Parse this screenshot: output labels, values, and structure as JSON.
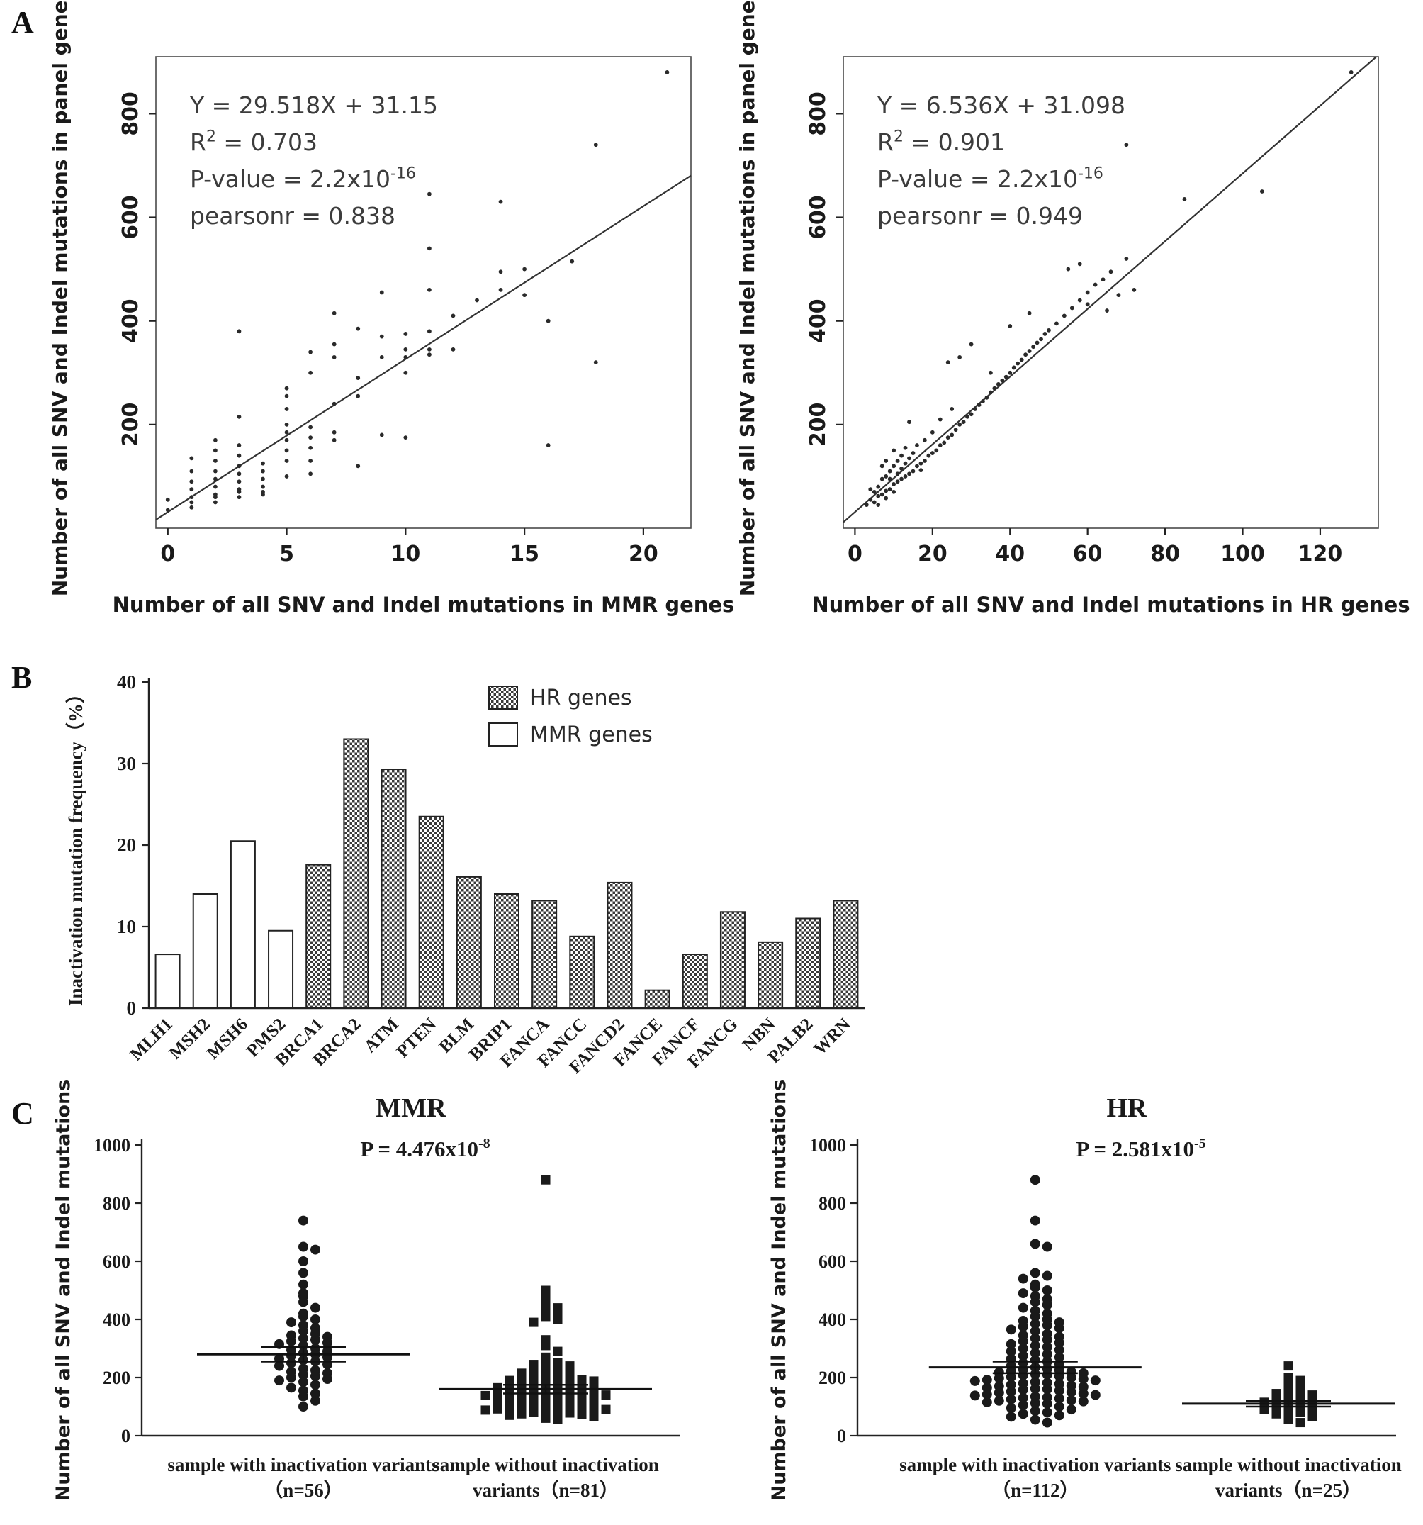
{
  "panel_labels": {
    "a": "A",
    "b": "B",
    "c": "C"
  },
  "chart_data": [
    {
      "id": "scatter-mmr",
      "type": "scatter",
      "xlabel": "Number of all SNV and Indel mutations in MMR genes",
      "ylabel": "Number of all SNV and Indel mutations in panel genes",
      "xlim": [
        -0.5,
        22
      ],
      "ylim": [
        0,
        910
      ],
      "xticks": [
        0,
        5,
        10,
        15,
        20
      ],
      "yticks": [
        200,
        400,
        600,
        800
      ],
      "fit": {
        "slope": 29.518,
        "intercept": 31.15
      },
      "annotation": [
        [
          {
            "t": "Y = 29.518X + 31.15"
          }
        ],
        [
          {
            "t": "R"
          },
          {
            "t": "2",
            "sup": true
          },
          {
            "t": " = 0.703"
          }
        ],
        [
          {
            "t": "P-value = 2.2x10"
          },
          {
            "t": "-16",
            "sup": true
          }
        ],
        [
          {
            "t": "pearsonr = 0.838"
          }
        ]
      ],
      "points": [
        [
          0,
          35
        ],
        [
          0,
          55
        ],
        [
          1,
          40
        ],
        [
          1,
          50
        ],
        [
          1,
          60
        ],
        [
          1,
          75
        ],
        [
          1,
          90
        ],
        [
          1,
          110
        ],
        [
          1,
          135
        ],
        [
          2,
          50
        ],
        [
          2,
          60
        ],
        [
          2,
          65
        ],
        [
          2,
          80
        ],
        [
          2,
          95
        ],
        [
          2,
          110
        ],
        [
          2,
          130
        ],
        [
          2,
          150
        ],
        [
          2,
          170
        ],
        [
          3,
          60
        ],
        [
          3,
          70
        ],
        [
          3,
          75
        ],
        [
          3,
          90
        ],
        [
          3,
          105
        ],
        [
          3,
          120
        ],
        [
          3,
          140
        ],
        [
          3,
          160
        ],
        [
          3,
          215
        ],
        [
          3,
          380
        ],
        [
          4,
          65
        ],
        [
          4,
          70
        ],
        [
          4,
          80
        ],
        [
          4,
          95
        ],
        [
          4,
          110
        ],
        [
          4,
          125
        ],
        [
          5,
          100
        ],
        [
          5,
          130
        ],
        [
          5,
          150
        ],
        [
          5,
          170
        ],
        [
          5,
          185
        ],
        [
          5,
          200
        ],
        [
          5,
          230
        ],
        [
          5,
          255
        ],
        [
          5,
          270
        ],
        [
          6,
          105
        ],
        [
          6,
          130
        ],
        [
          6,
          155
        ],
        [
          6,
          175
        ],
        [
          6,
          195
        ],
        [
          6,
          300
        ],
        [
          6,
          340
        ],
        [
          7,
          170
        ],
        [
          7,
          185
        ],
        [
          7,
          240
        ],
        [
          7,
          330
        ],
        [
          7,
          355
        ],
        [
          7,
          415
        ],
        [
          8,
          120
        ],
        [
          8,
          255
        ],
        [
          8,
          290
        ],
        [
          8,
          385
        ],
        [
          9,
          180
        ],
        [
          9,
          330
        ],
        [
          9,
          370
        ],
        [
          9,
          455
        ],
        [
          10,
          175
        ],
        [
          10,
          300
        ],
        [
          10,
          330
        ],
        [
          10,
          345
        ],
        [
          10,
          375
        ],
        [
          11,
          335
        ],
        [
          11,
          345
        ],
        [
          11,
          380
        ],
        [
          11,
          460
        ],
        [
          11,
          540
        ],
        [
          11,
          645
        ],
        [
          12,
          345
        ],
        [
          12,
          410
        ],
        [
          13,
          440
        ],
        [
          14,
          460
        ],
        [
          14,
          495
        ],
        [
          14,
          630
        ],
        [
          15,
          450
        ],
        [
          15,
          500
        ],
        [
          16,
          160
        ],
        [
          16,
          400
        ],
        [
          17,
          515
        ],
        [
          18,
          320
        ],
        [
          18,
          740
        ],
        [
          21,
          880
        ]
      ]
    },
    {
      "id": "scatter-hr",
      "type": "scatter",
      "xlabel": "Number of all SNV and Indel mutations in HR genes",
      "ylabel": "Number of all SNV and Indel mutations in panel genes",
      "xlim": [
        -3,
        135
      ],
      "ylim": [
        0,
        910
      ],
      "xticks": [
        0,
        20,
        40,
        60,
        80,
        100,
        120
      ],
      "yticks": [
        200,
        400,
        600,
        800
      ],
      "fit": {
        "slope": 6.536,
        "intercept": 31.098
      },
      "annotation": [
        [
          {
            "t": "Y = 6.536X + 31.098"
          }
        ],
        [
          {
            "t": "R"
          },
          {
            "t": "2",
            "sup": true
          },
          {
            "t": " = 0.901"
          }
        ],
        [
          {
            "t": "P-value = 2.2x10"
          },
          {
            "t": "-16",
            "sup": true
          }
        ],
        [
          {
            "t": "pearsonr = 0.949"
          }
        ]
      ],
      "points": [
        [
          3,
          45
        ],
        [
          4,
          55
        ],
        [
          4,
          75
        ],
        [
          5,
          50
        ],
        [
          5,
          70
        ],
        [
          6,
          45
        ],
        [
          6,
          62
        ],
        [
          6,
          80
        ],
        [
          7,
          65
        ],
        [
          7,
          95
        ],
        [
          7,
          120
        ],
        [
          8,
          58
        ],
        [
          8,
          72
        ],
        [
          8,
          100
        ],
        [
          8,
          130
        ],
        [
          9,
          75
        ],
        [
          9,
          95
        ],
        [
          9,
          110
        ],
        [
          10,
          70
        ],
        [
          10,
          85
        ],
        [
          10,
          120
        ],
        [
          10,
          150
        ],
        [
          11,
          90
        ],
        [
          11,
          105
        ],
        [
          11,
          130
        ],
        [
          12,
          95
        ],
        [
          12,
          115
        ],
        [
          12,
          140
        ],
        [
          13,
          100
        ],
        [
          13,
          125
        ],
        [
          13,
          155
        ],
        [
          14,
          105
        ],
        [
          14,
          135
        ],
        [
          14,
          205
        ],
        [
          15,
          110
        ],
        [
          15,
          145
        ],
        [
          16,
          120
        ],
        [
          16,
          160
        ],
        [
          17,
          112
        ],
        [
          17,
          125
        ],
        [
          18,
          130
        ],
        [
          18,
          170
        ],
        [
          19,
          140
        ],
        [
          20,
          145
        ],
        [
          20,
          185
        ],
        [
          21,
          150
        ],
        [
          22,
          160
        ],
        [
          22,
          210
        ],
        [
          23,
          165
        ],
        [
          24,
          175
        ],
        [
          24,
          320
        ],
        [
          25,
          180
        ],
        [
          25,
          230
        ],
        [
          26,
          190
        ],
        [
          27,
          200
        ],
        [
          27,
          330
        ],
        [
          28,
          205
        ],
        [
          29,
          215
        ],
        [
          30,
          220
        ],
        [
          30,
          355
        ],
        [
          31,
          230
        ],
        [
          32,
          238
        ],
        [
          33,
          245
        ],
        [
          34,
          252
        ],
        [
          35,
          262
        ],
        [
          35,
          300
        ],
        [
          36,
          270
        ],
        [
          37,
          278
        ],
        [
          38,
          285
        ],
        [
          39,
          292
        ],
        [
          40,
          300
        ],
        [
          40,
          390
        ],
        [
          41,
          310
        ],
        [
          42,
          318
        ],
        [
          43,
          325
        ],
        [
          44,
          335
        ],
        [
          45,
          342
        ],
        [
          45,
          415
        ],
        [
          46,
          350
        ],
        [
          47,
          358
        ],
        [
          48,
          365
        ],
        [
          49,
          375
        ],
        [
          50,
          382
        ],
        [
          52,
          395
        ],
        [
          54,
          410
        ],
        [
          55,
          500
        ],
        [
          56,
          425
        ],
        [
          58,
          440
        ],
        [
          58,
          510
        ],
        [
          60,
          432
        ],
        [
          60,
          455
        ],
        [
          62,
          470
        ],
        [
          64,
          480
        ],
        [
          65,
          420
        ],
        [
          66,
          495
        ],
        [
          68,
          450
        ],
        [
          70,
          520
        ],
        [
          70,
          740
        ],
        [
          72,
          460
        ],
        [
          85,
          635
        ],
        [
          105,
          650
        ],
        [
          128,
          880
        ]
      ]
    },
    {
      "id": "bar-inactivation",
      "type": "bar",
      "ylabel": "Inactivation mutation frequency（%）",
      "ylim": [
        0,
        40
      ],
      "yticks": [
        0,
        10,
        20,
        30,
        40
      ],
      "legend": [
        {
          "label": "HR genes",
          "style": "hatch"
        },
        {
          "label": "MMR genes",
          "style": "open"
        }
      ],
      "categories": [
        "MLH1",
        "MSH2",
        "MSH6",
        "PMS2",
        "BRCA1",
        "BRCA2",
        "ATM",
        "PTEN",
        "BLM",
        "BRIP1",
        "FANCA",
        "FANCC",
        "FANCD2",
        "FANCE",
        "FANCF",
        "FANCG",
        "NBN",
        "PALB2",
        "WRN"
      ],
      "values": [
        6.6,
        14.0,
        20.5,
        9.5,
        17.6,
        33.0,
        29.3,
        23.5,
        16.1,
        14.0,
        13.2,
        8.8,
        15.4,
        2.2,
        6.6,
        11.8,
        8.1,
        11.0,
        13.2
      ],
      "groups": [
        "MMR",
        "MMR",
        "MMR",
        "MMR",
        "HR",
        "HR",
        "HR",
        "HR",
        "HR",
        "HR",
        "HR",
        "HR",
        "HR",
        "HR",
        "HR",
        "HR",
        "HR",
        "HR",
        "HR"
      ]
    },
    {
      "id": "strip-mmr",
      "type": "strip",
      "title": "MMR",
      "p_label": [
        {
          "t": "P = 4.476x10"
        },
        {
          "t": "-8",
          "sup": true
        }
      ],
      "ylabel": "Number of all SNV and Indel mutations",
      "ylim": [
        0,
        1000
      ],
      "yticks": [
        0,
        200,
        400,
        600,
        800,
        1000
      ],
      "groups": [
        {
          "label_lines": [
            "sample with inactivation variants",
            "（n=56）"
          ],
          "marker": "circle",
          "mean": 280,
          "sem": 25,
          "x_frac": 0.3,
          "values": [
            740,
            650,
            640,
            600,
            560,
            520,
            490,
            480,
            460,
            440,
            420,
            410,
            400,
            390,
            380,
            370,
            360,
            350,
            345,
            340,
            335,
            330,
            325,
            320,
            315,
            310,
            300,
            295,
            290,
            285,
            280,
            275,
            270,
            265,
            260,
            255,
            250,
            245,
            240,
            230,
            225,
            220,
            215,
            210,
            205,
            200,
            195,
            190,
            185,
            175,
            165,
            155,
            145,
            135,
            120,
            100
          ]
        },
        {
          "label_lines": [
            "sample without inactivation",
            "variants（n=81）"
          ],
          "marker": "square",
          "mean": 160,
          "sem": 15,
          "x_frac": 0.75,
          "values": [
            880,
            500,
            470,
            450,
            440,
            430,
            420,
            410,
            400,
            390,
            330,
            310,
            290,
            270,
            260,
            250,
            245,
            240,
            235,
            230,
            225,
            220,
            215,
            210,
            205,
            200,
            198,
            195,
            192,
            190,
            188,
            185,
            182,
            180,
            178,
            175,
            172,
            170,
            168,
            165,
            162,
            160,
            158,
            155,
            152,
            150,
            148,
            145,
            142,
            140,
            138,
            135,
            132,
            130,
            128,
            125,
            122,
            120,
            118,
            115,
            112,
            110,
            108,
            105,
            102,
            100,
            98,
            95,
            92,
            90,
            88,
            85,
            82,
            80,
            78,
            75,
            72,
            70,
            65,
            60,
            55
          ]
        }
      ]
    },
    {
      "id": "strip-hr",
      "type": "strip",
      "title": "HR",
      "p_label": [
        {
          "t": "P = 2.581x10"
        },
        {
          "t": "-5",
          "sup": true
        }
      ],
      "ylabel": "Number of all SNV and Indel mutations",
      "ylim": [
        0,
        1000
      ],
      "yticks": [
        0,
        200,
        400,
        600,
        800,
        1000
      ],
      "groups": [
        {
          "label_lines": [
            "sample with inactivation variants",
            "（n=112）"
          ],
          "marker": "circle",
          "mean": 235,
          "sem": 20,
          "x_frac": 0.33,
          "values": [
            880,
            740,
            660,
            650,
            560,
            550,
            540,
            520,
            510,
            500,
            490,
            480,
            470,
            460,
            450,
            440,
            430,
            420,
            410,
            400,
            395,
            390,
            385,
            380,
            375,
            370,
            365,
            360,
            350,
            345,
            340,
            335,
            330,
            325,
            320,
            315,
            310,
            305,
            300,
            295,
            290,
            285,
            280,
            275,
            270,
            265,
            260,
            255,
            250,
            245,
            240,
            235,
            230,
            228,
            225,
            222,
            220,
            218,
            215,
            212,
            210,
            208,
            205,
            202,
            200,
            198,
            195,
            192,
            190,
            188,
            185,
            182,
            180,
            178,
            175,
            172,
            170,
            168,
            165,
            162,
            160,
            158,
            155,
            152,
            150,
            148,
            145,
            142,
            140,
            138,
            135,
            132,
            130,
            128,
            125,
            122,
            120,
            118,
            115,
            112,
            110,
            105,
            100,
            95,
            90,
            85,
            80,
            75,
            70,
            65,
            55,
            45
          ]
        },
        {
          "label_lines": [
            "sample without inactivation",
            "variants（n=25）"
          ],
          "marker": "square",
          "mean": 110,
          "sem": 10,
          "x_frac": 0.8,
          "values": [
            240,
            200,
            190,
            180,
            170,
            160,
            150,
            145,
            140,
            135,
            130,
            125,
            120,
            115,
            110,
            105,
            100,
            95,
            90,
            85,
            80,
            75,
            65,
            55,
            45
          ]
        }
      ]
    }
  ]
}
